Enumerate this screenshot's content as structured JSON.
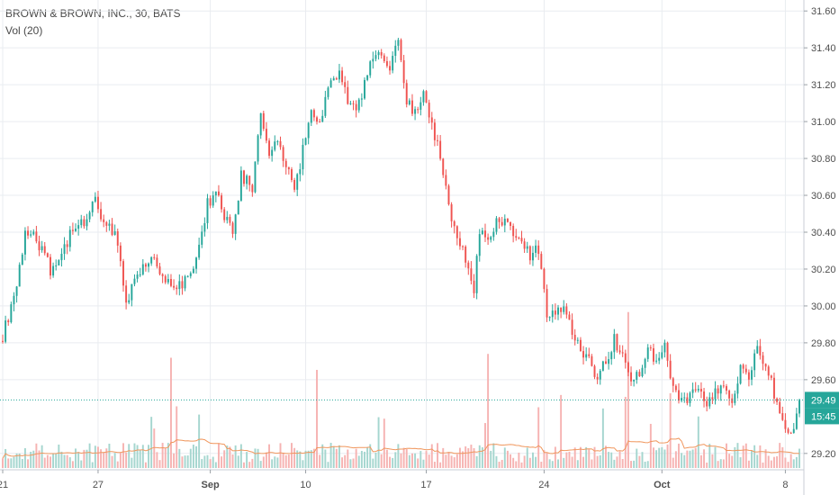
{
  "header": {
    "title": "BROWN & BROWN, INC., 30, BATS",
    "volume_label": "Vol (20)"
  },
  "price_badge": {
    "value": "29.49",
    "time": "15:45"
  },
  "colors": {
    "up": "#26a69a",
    "down": "#ef5350",
    "up_volume": "#a5d6cf",
    "down_volume": "#f6b3b2",
    "volume_ma": "#f0965c",
    "last_line": "#26a69a",
    "grid": "#e9ecf0",
    "axis_text": "#4f4f4f"
  },
  "chart_data": {
    "type": "candlestick",
    "title": "BROWN & BROWN, INC., 30, BATS",
    "interval": "30",
    "y_axis": {
      "position": "right",
      "ticks": [
        "31.60",
        "31.40",
        "31.20",
        "31.00",
        "30.80",
        "30.60",
        "30.40",
        "30.20",
        "30.00",
        "29.80",
        "29.60",
        "29.20"
      ],
      "range": [
        29.16,
        31.64
      ]
    },
    "x_axis": {
      "ticks": [
        {
          "label": "21",
          "index": 0,
          "bold": false
        },
        {
          "label": "27",
          "index": 34,
          "bold": false
        },
        {
          "label": "Sep",
          "index": 74,
          "bold": true
        },
        {
          "label": "10",
          "index": 108,
          "bold": false
        },
        {
          "label": "17",
          "index": 151,
          "bold": false
        },
        {
          "label": "24",
          "index": 193,
          "bold": false
        },
        {
          "label": "Oct",
          "index": 235,
          "bold": true
        },
        {
          "label": "8",
          "index": 279,
          "bold": false
        }
      ]
    },
    "grid": true,
    "last_price": 29.49,
    "price_path": [
      [
        0,
        29.84
      ],
      [
        3,
        30.0
      ],
      [
        6,
        30.2
      ],
      [
        8,
        30.4
      ],
      [
        11,
        30.38
      ],
      [
        14,
        30.3
      ],
      [
        17,
        30.2
      ],
      [
        21,
        30.25
      ],
      [
        24,
        30.4
      ],
      [
        28,
        30.45
      ],
      [
        31,
        30.5
      ],
      [
        33,
        30.6
      ],
      [
        36,
        30.45
      ],
      [
        40,
        30.4
      ],
      [
        44,
        30.02
      ],
      [
        47,
        30.15
      ],
      [
        50,
        30.2
      ],
      [
        54,
        30.25
      ],
      [
        57,
        30.15
      ],
      [
        60,
        30.1
      ],
      [
        63,
        30.12
      ],
      [
        67,
        30.15
      ],
      [
        70,
        30.3
      ],
      [
        73,
        30.55
      ],
      [
        76,
        30.62
      ],
      [
        79,
        30.5
      ],
      [
        82,
        30.4
      ],
      [
        85,
        30.7
      ],
      [
        89,
        30.65
      ],
      [
        92,
        31.05
      ],
      [
        95,
        30.8
      ],
      [
        98,
        30.9
      ],
      [
        101,
        30.75
      ],
      [
        104,
        30.62
      ],
      [
        107,
        30.85
      ],
      [
        110,
        31.05
      ],
      [
        113,
        31.0
      ],
      [
        117,
        31.2
      ],
      [
        120,
        31.25
      ],
      [
        123,
        31.12
      ],
      [
        126,
        31.07
      ],
      [
        129,
        31.2
      ],
      [
        132,
        31.35
      ],
      [
        135,
        31.38
      ],
      [
        138,
        31.3
      ],
      [
        141,
        31.45
      ],
      [
        144,
        31.12
      ],
      [
        147,
        31.05
      ],
      [
        150,
        31.15
      ],
      [
        153,
        31.0
      ],
      [
        156,
        30.8
      ],
      [
        159,
        30.55
      ],
      [
        162,
        30.38
      ],
      [
        165,
        30.25
      ],
      [
        168,
        30.1
      ],
      [
        170,
        30.4
      ],
      [
        173,
        30.35
      ],
      [
        176,
        30.45
      ],
      [
        179,
        30.48
      ],
      [
        182,
        30.4
      ],
      [
        185,
        30.35
      ],
      [
        188,
        30.28
      ],
      [
        191,
        30.3
      ],
      [
        194,
        29.95
      ],
      [
        197,
        29.98
      ],
      [
        200,
        30.0
      ],
      [
        203,
        29.85
      ],
      [
        206,
        29.75
      ],
      [
        209,
        29.7
      ],
      [
        212,
        29.62
      ],
      [
        215,
        29.7
      ],
      [
        218,
        29.82
      ],
      [
        221,
        29.72
      ],
      [
        224,
        29.62
      ],
      [
        227,
        29.65
      ],
      [
        230,
        29.75
      ],
      [
        233,
        29.72
      ],
      [
        236,
        29.78
      ],
      [
        239,
        29.55
      ],
      [
        242,
        29.48
      ],
      [
        245,
        29.52
      ],
      [
        248,
        29.55
      ],
      [
        251,
        29.48
      ],
      [
        254,
        29.52
      ],
      [
        257,
        29.55
      ],
      [
        260,
        29.5
      ],
      [
        263,
        29.65
      ],
      [
        266,
        29.6
      ],
      [
        269,
        29.78
      ],
      [
        271,
        29.7
      ],
      [
        274,
        29.58
      ],
      [
        277,
        29.42
      ],
      [
        279,
        29.3
      ],
      [
        282,
        29.35
      ],
      [
        284,
        29.49
      ]
    ],
    "series": [
      {
        "name": "Vol (20)",
        "type": "volume_histogram"
      },
      {
        "name": "Vol (20) MA",
        "type": "line"
      }
    ],
    "num_bars": 285
  }
}
